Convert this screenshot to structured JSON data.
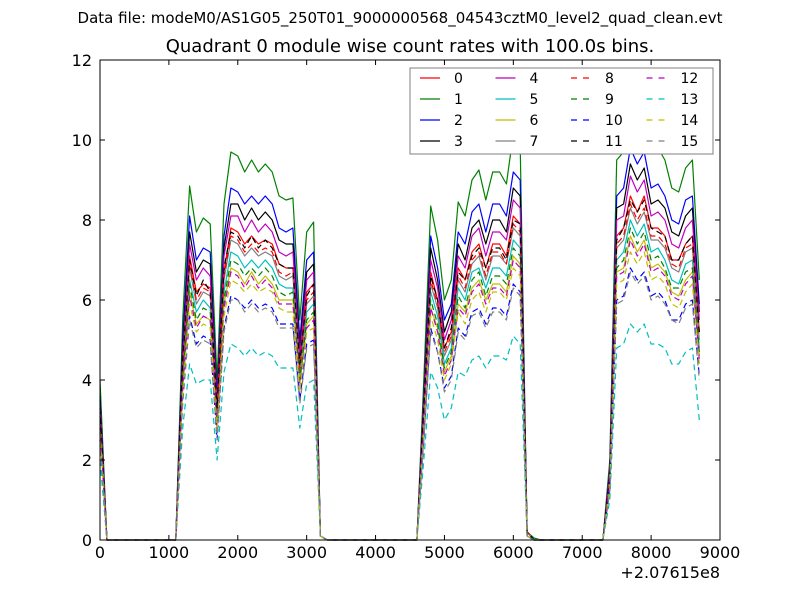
{
  "chart_data": {
    "type": "line",
    "suptitle": "Data file: modeM0/AS1G05_250T01_9000000568_04543cztM0_level2_quad_clean.evt",
    "title": "Quadrant 0 module wise count rates with 100.0s bins.",
    "xlabel": "",
    "ylabel": "",
    "xlim": [
      0,
      9000
    ],
    "ylim": [
      0,
      12
    ],
    "x_offset_label": "+2.07615e8",
    "xticks": [
      0,
      1000,
      2000,
      3000,
      4000,
      5000,
      6000,
      7000,
      8000,
      9000
    ],
    "yticks": [
      0,
      2,
      4,
      6,
      8,
      10,
      12
    ],
    "grid": false,
    "legend_placement": "top-right",
    "legend_columns": 4,
    "x": [
      0,
      100,
      1100,
      1200,
      1300,
      1400,
      1500,
      1600,
      1700,
      1800,
      1900,
      2000,
      2100,
      2200,
      2300,
      2400,
      2500,
      2600,
      2700,
      2800,
      2900,
      3000,
      3100,
      3200,
      3300,
      4600,
      4700,
      4800,
      4900,
      5000,
      5100,
      5200,
      5300,
      5400,
      5500,
      5600,
      5700,
      5800,
      5900,
      6000,
      6100,
      6200,
      6300,
      6400,
      7300,
      7400,
      7500,
      7600,
      7700,
      7800,
      7900,
      8000,
      8100,
      8200,
      8300,
      8400,
      8500,
      8600,
      8700
    ],
    "series": [
      {
        "name": "0",
        "color": "#ff0000",
        "style": "solid",
        "values": [
          3.2,
          0,
          0,
          4.4,
          7.1,
          6.2,
          6.4,
          6.3,
          3.2,
          6.7,
          7.8,
          7.7,
          7.4,
          7.6,
          7.4,
          7.5,
          7.4,
          6.9,
          6.8,
          6.8,
          4.4,
          6.2,
          6.4,
          0.1,
          0,
          0,
          3.2,
          6.7,
          6.0,
          4.8,
          5.2,
          6.8,
          6.5,
          7.2,
          7.4,
          6.8,
          7.4,
          7.4,
          7.1,
          8.1,
          7.9,
          0.2,
          0,
          0,
          0,
          1.6,
          7.6,
          7.8,
          8.6,
          8.2,
          8.6,
          7.8,
          7.8,
          7.6,
          7.0,
          7.0,
          7.4,
          7.6,
          5.2
        ]
      },
      {
        "name": "1",
        "color": "#008000",
        "style": "solid",
        "values": [
          4.0,
          0,
          0,
          5.5,
          8.85,
          7.7,
          8.05,
          7.9,
          4.0,
          8.4,
          9.7,
          9.6,
          9.2,
          9.5,
          9.2,
          9.4,
          9.2,
          8.6,
          8.5,
          8.55,
          5.5,
          7.7,
          7.95,
          0.1,
          0,
          0,
          4.0,
          8.35,
          7.5,
          6.0,
          6.5,
          8.45,
          8.1,
          9.0,
          9.25,
          8.5,
          9.2,
          9.2,
          8.9,
          10.15,
          9.85,
          0.2,
          0.05,
          0,
          0,
          2.0,
          9.5,
          9.7,
          10.8,
          10.3,
          10.7,
          9.7,
          9.8,
          9.5,
          8.8,
          8.7,
          9.3,
          9.5,
          6.5
        ]
      },
      {
        "name": "2",
        "color": "#0000ff",
        "style": "solid",
        "values": [
          3.6,
          0,
          0,
          5.0,
          8.1,
          7.0,
          7.3,
          7.2,
          3.6,
          7.6,
          8.8,
          8.7,
          8.4,
          8.6,
          8.4,
          8.6,
          8.4,
          7.8,
          7.7,
          7.8,
          5.0,
          7.0,
          7.2,
          0.1,
          0,
          0,
          3.6,
          7.6,
          6.8,
          5.5,
          5.9,
          7.7,
          7.4,
          8.2,
          8.4,
          7.7,
          8.4,
          8.4,
          8.1,
          9.2,
          9.0,
          0.2,
          0,
          0,
          0,
          1.8,
          8.6,
          8.8,
          9.8,
          9.4,
          9.7,
          8.8,
          8.9,
          8.6,
          8.0,
          7.9,
          8.5,
          8.6,
          5.9
        ]
      },
      {
        "name": "3",
        "color": "#000000",
        "style": "solid",
        "values": [
          3.5,
          0,
          0,
          4.8,
          7.7,
          6.7,
          7.0,
          6.9,
          3.5,
          7.3,
          8.4,
          8.4,
          8.0,
          8.3,
          8.0,
          8.2,
          8.0,
          7.5,
          7.4,
          7.4,
          4.8,
          6.7,
          6.9,
          0.1,
          0,
          0,
          3.5,
          7.3,
          6.5,
          5.2,
          5.7,
          7.4,
          7.0,
          7.8,
          8.0,
          7.4,
          8.0,
          8.0,
          7.7,
          8.8,
          8.6,
          0.2,
          0,
          0,
          0,
          1.7,
          8.3,
          8.4,
          9.4,
          9.0,
          9.3,
          8.4,
          8.5,
          8.3,
          7.7,
          7.6,
          8.1,
          8.3,
          5.7
        ]
      },
      {
        "name": "4",
        "color": "#bf00bf",
        "style": "solid",
        "values": [
          3.4,
          0,
          0,
          4.6,
          7.4,
          6.5,
          6.8,
          6.6,
          3.4,
          7.1,
          8.1,
          8.1,
          7.7,
          8.0,
          7.7,
          7.9,
          7.7,
          7.2,
          7.1,
          7.2,
          4.6,
          6.5,
          6.7,
          0.1,
          0,
          0,
          3.4,
          7.0,
          6.3,
          5.0,
          5.5,
          7.1,
          6.8,
          7.6,
          7.8,
          7.1,
          7.7,
          7.7,
          7.5,
          8.5,
          8.3,
          0.2,
          0,
          0,
          0,
          1.7,
          8.0,
          8.1,
          9.1,
          8.7,
          9.0,
          8.1,
          8.2,
          8.0,
          7.4,
          7.3,
          7.8,
          8.0,
          5.5
        ]
      },
      {
        "name": "5",
        "color": "#00bfbf",
        "style": "solid",
        "values": [
          3.0,
          0,
          0,
          4.1,
          6.5,
          5.7,
          6.0,
          5.8,
          3.0,
          6.2,
          7.2,
          7.1,
          6.8,
          7.0,
          6.8,
          7.0,
          6.8,
          6.4,
          6.3,
          6.3,
          4.1,
          5.7,
          5.9,
          0.1,
          0,
          0,
          3.0,
          6.2,
          5.6,
          4.4,
          4.8,
          6.3,
          6.0,
          6.7,
          6.8,
          6.3,
          6.8,
          6.8,
          6.6,
          7.5,
          7.3,
          0.1,
          0,
          0,
          0,
          1.5,
          7.0,
          7.2,
          8.0,
          7.6,
          7.9,
          7.2,
          7.3,
          7.0,
          6.5,
          6.4,
          6.9,
          7.0,
          4.8
        ]
      },
      {
        "name": "6",
        "color": "#bfbf00",
        "style": "solid",
        "values": [
          2.8,
          0,
          0,
          3.9,
          6.2,
          5.4,
          5.6,
          5.5,
          2.8,
          5.9,
          6.8,
          6.7,
          6.4,
          6.7,
          6.4,
          6.6,
          6.4,
          6.0,
          6.0,
          6.0,
          3.9,
          5.4,
          5.6,
          0.1,
          0,
          0,
          2.8,
          5.8,
          5.3,
          4.2,
          4.6,
          5.9,
          5.7,
          6.3,
          6.5,
          6.0,
          6.4,
          6.4,
          6.2,
          7.1,
          6.9,
          0.1,
          0,
          0,
          0,
          1.4,
          6.7,
          6.8,
          7.6,
          7.2,
          7.5,
          6.8,
          6.9,
          6.7,
          6.2,
          6.1,
          6.5,
          6.7,
          4.6
        ]
      },
      {
        "name": "7",
        "color": "#808080",
        "style": "solid",
        "values": [
          3.1,
          0,
          0,
          4.2,
          6.8,
          5.9,
          6.2,
          6.1,
          3.1,
          6.5,
          7.5,
          7.4,
          7.1,
          7.3,
          7.1,
          7.2,
          7.1,
          6.6,
          6.5,
          6.6,
          4.2,
          5.9,
          6.1,
          0.1,
          0,
          0,
          3.1,
          6.4,
          5.8,
          4.6,
          5.0,
          6.5,
          6.2,
          6.9,
          7.1,
          6.5,
          7.1,
          7.1,
          6.9,
          7.8,
          7.6,
          0.2,
          0,
          0,
          0,
          1.5,
          7.3,
          7.5,
          8.3,
          7.9,
          8.2,
          7.5,
          7.5,
          7.3,
          6.8,
          6.7,
          7.2,
          7.3,
          5.0
        ]
      },
      {
        "name": "8",
        "color": "#ff0000",
        "style": "dashed",
        "values": [
          3.1,
          0,
          0,
          4.3,
          6.9,
          6.0,
          6.3,
          6.2,
          3.1,
          6.6,
          7.6,
          7.5,
          7.2,
          7.4,
          7.2,
          7.3,
          7.2,
          6.7,
          6.6,
          6.7,
          4.3,
          6.0,
          6.2,
          0.1,
          0,
          0,
          3.1,
          6.5,
          5.9,
          4.7,
          5.1,
          6.6,
          6.3,
          7.0,
          7.2,
          6.6,
          7.2,
          7.2,
          6.9,
          7.9,
          7.7,
          0.2,
          0,
          0,
          0,
          1.6,
          7.4,
          7.6,
          8.4,
          8.0,
          8.3,
          7.6,
          7.6,
          7.4,
          6.9,
          6.8,
          7.3,
          7.4,
          5.1
        ]
      },
      {
        "name": "9",
        "color": "#008000",
        "style": "dashed",
        "values": [
          2.9,
          0,
          0,
          4.0,
          6.4,
          5.5,
          5.8,
          5.7,
          2.9,
          6.0,
          7.0,
          6.9,
          6.6,
          6.8,
          6.6,
          6.8,
          6.6,
          6.2,
          6.1,
          6.2,
          4.0,
          5.5,
          5.7,
          0.1,
          0,
          0,
          2.9,
          6.0,
          5.4,
          4.3,
          4.7,
          6.1,
          5.8,
          6.5,
          6.7,
          6.1,
          6.6,
          6.6,
          6.4,
          7.3,
          7.1,
          0.1,
          0,
          0,
          0,
          1.4,
          6.8,
          7.0,
          7.8,
          7.4,
          7.7,
          7.0,
          7.1,
          6.8,
          6.3,
          6.3,
          6.7,
          6.8,
          4.7
        ]
      },
      {
        "name": "10",
        "color": "#0000ff",
        "style": "dashed",
        "values": [
          2.5,
          0,
          0,
          3.5,
          5.6,
          4.9,
          5.1,
          5.0,
          2.5,
          5.3,
          6.1,
          6.0,
          5.8,
          6.0,
          5.8,
          5.9,
          5.8,
          5.4,
          5.4,
          5.4,
          3.5,
          4.9,
          5.0,
          0.1,
          0,
          0,
          2.5,
          5.3,
          4.7,
          3.8,
          4.1,
          5.3,
          5.1,
          5.7,
          5.8,
          5.4,
          5.8,
          5.8,
          5.6,
          6.4,
          6.2,
          0.1,
          0,
          0,
          0,
          1.3,
          6.0,
          6.1,
          6.8,
          6.5,
          6.7,
          6.1,
          6.2,
          6.0,
          5.5,
          5.5,
          5.9,
          6.0,
          4.1
        ]
      },
      {
        "name": "11",
        "color": "#000000",
        "style": "dashed",
        "values": [
          3.3,
          0,
          0,
          4.5,
          7.0,
          6.1,
          6.5,
          6.2,
          3.3,
          6.8,
          7.7,
          7.6,
          7.3,
          7.6,
          7.3,
          7.5,
          7.3,
          6.9,
          6.8,
          6.8,
          4.4,
          6.1,
          6.4,
          0.1,
          0,
          0,
          3.3,
          6.6,
          6.0,
          4.8,
          5.3,
          6.7,
          6.5,
          7.1,
          7.3,
          6.8,
          7.3,
          7.3,
          7.0,
          8.0,
          7.9,
          0.2,
          0,
          0,
          0,
          1.6,
          7.5,
          7.8,
          8.5,
          8.2,
          8.5,
          7.8,
          7.7,
          7.6,
          7.0,
          7.0,
          7.4,
          7.6,
          5.2
        ]
      },
      {
        "name": "12",
        "color": "#bf00bf",
        "style": "dashed",
        "values": [
          2.8,
          0,
          0,
          3.8,
          6.1,
          5.3,
          5.6,
          5.5,
          2.8,
          5.8,
          6.7,
          6.6,
          6.3,
          6.6,
          6.3,
          6.5,
          6.3,
          5.9,
          5.9,
          5.9,
          3.8,
          5.3,
          5.5,
          0.1,
          0,
          0,
          2.8,
          5.8,
          5.2,
          4.1,
          4.5,
          5.8,
          5.6,
          6.2,
          6.4,
          5.9,
          6.3,
          6.3,
          6.1,
          7.0,
          6.8,
          0.1,
          0,
          0,
          0,
          1.4,
          6.6,
          6.7,
          7.5,
          7.1,
          7.4,
          6.7,
          6.8,
          6.6,
          6.1,
          6.0,
          6.4,
          6.6,
          4.5
        ]
      },
      {
        "name": "13",
        "color": "#00bfbf",
        "style": "dashed",
        "values": [
          2.0,
          0,
          0,
          2.8,
          4.4,
          3.9,
          4.0,
          4.0,
          2.0,
          4.2,
          4.9,
          4.8,
          4.6,
          4.8,
          4.6,
          4.7,
          4.6,
          4.3,
          4.3,
          4.3,
          2.8,
          3.9,
          4.0,
          0.1,
          0,
          0,
          2.0,
          4.2,
          3.8,
          3.0,
          3.3,
          4.2,
          4.1,
          4.5,
          4.6,
          4.3,
          4.6,
          4.6,
          4.5,
          5.1,
          4.9,
          0.1,
          0,
          0,
          0,
          1.0,
          4.8,
          4.9,
          5.4,
          5.2,
          5.4,
          4.9,
          4.9,
          4.8,
          4.4,
          4.4,
          4.7,
          4.8,
          3.0
        ]
      },
      {
        "name": "14",
        "color": "#bfbf00",
        "style": "dashed",
        "values": [
          2.7,
          0,
          0,
          3.7,
          5.9,
          5.2,
          5.4,
          5.3,
          2.7,
          5.6,
          6.5,
          6.4,
          6.2,
          6.4,
          6.2,
          6.3,
          6.2,
          5.8,
          5.7,
          5.7,
          3.7,
          5.2,
          5.3,
          0.1,
          0,
          0,
          2.7,
          5.6,
          5.0,
          4.0,
          4.4,
          5.7,
          5.4,
          6.0,
          6.2,
          5.7,
          6.2,
          6.2,
          6.0,
          6.8,
          6.6,
          0.1,
          0,
          0,
          0,
          1.3,
          6.4,
          6.5,
          7.2,
          6.9,
          7.2,
          6.5,
          6.6,
          6.4,
          5.9,
          5.8,
          6.2,
          6.4,
          4.4
        ]
      },
      {
        "name": "15",
        "color": "#808080",
        "style": "dashed",
        "values": [
          2.5,
          0,
          0,
          3.4,
          5.5,
          4.8,
          5.0,
          4.9,
          2.5,
          5.2,
          6.0,
          6.0,
          5.7,
          5.9,
          5.7,
          5.8,
          5.7,
          5.3,
          5.3,
          5.3,
          3.4,
          4.8,
          4.9,
          0.1,
          0,
          0,
          2.5,
          5.2,
          4.7,
          3.7,
          4.0,
          5.2,
          5.0,
          5.6,
          5.7,
          5.3,
          5.7,
          5.7,
          5.5,
          6.3,
          6.1,
          0.1,
          0,
          0,
          0,
          1.2,
          5.9,
          6.0,
          6.7,
          6.4,
          6.6,
          6.0,
          6.1,
          5.9,
          5.5,
          5.4,
          5.8,
          5.9,
          4.0
        ]
      }
    ]
  }
}
